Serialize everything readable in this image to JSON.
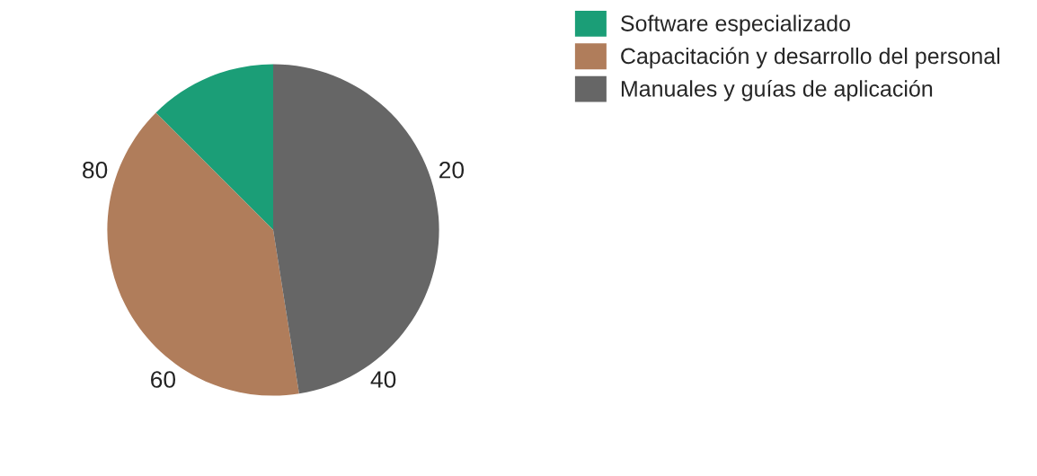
{
  "chart_data": {
    "type": "pie",
    "categories": [
      "Software especializado",
      "Capacitación y desarrollo del personal",
      "Manuales y guías de aplicación"
    ],
    "values": [
      12.5,
      40,
      47.5
    ],
    "colors": [
      "#1b9e77",
      "#b07d5b",
      "#666666"
    ],
    "annotations": [
      "20",
      "40",
      "60",
      "80"
    ],
    "legend": "top right"
  }
}
